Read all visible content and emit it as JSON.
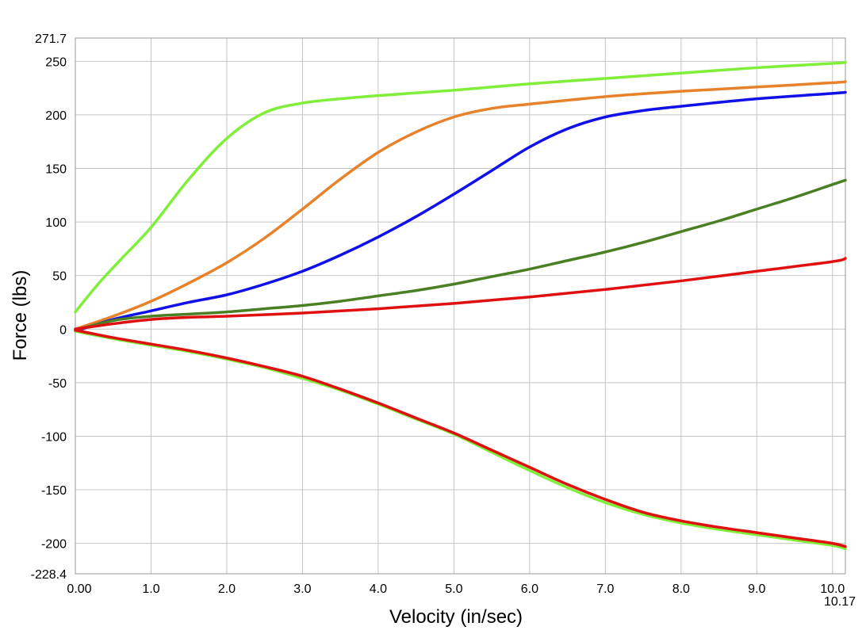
{
  "chart_data": {
    "type": "line",
    "xlabel": "Velocity (in/sec)",
    "ylabel": "Force (lbs)",
    "xlim": [
      0,
      10.17
    ],
    "ylim": [
      -228.4,
      271.7
    ],
    "x_ticks": [
      "0.00",
      "1.0",
      "2.0",
      "3.0",
      "4.0",
      "5.0",
      "6.0",
      "7.0",
      "8.0",
      "9.0",
      "10.0",
      "10.17"
    ],
    "y_ticks": [
      "271.7",
      "250",
      "200",
      "150",
      "100",
      "50",
      "0",
      "-50",
      "-100",
      "-150",
      "-200",
      "-228.4"
    ],
    "grid": true,
    "series": [
      {
        "color": "#7fef3a",
        "x": [
          0.0,
          0.3,
          0.6,
          1.0,
          1.5,
          2.0,
          2.5,
          3.0,
          3.5,
          4.0,
          5.0,
          6.0,
          7.0,
          8.0,
          9.0,
          10.0,
          10.17
        ],
        "y": [
          16,
          42,
          65,
          95,
          140,
          178,
          202,
          211,
          215,
          218,
          223,
          229,
          234,
          239,
          244,
          248,
          249
        ]
      },
      {
        "color": "#e8822a",
        "x": [
          0.0,
          0.5,
          1.0,
          1.5,
          2.0,
          2.5,
          3.0,
          3.5,
          4.0,
          4.5,
          5.0,
          5.5,
          6.0,
          7.0,
          8.0,
          9.0,
          10.0,
          10.17
        ],
        "y": [
          0,
          12,
          26,
          43,
          62,
          85,
          112,
          140,
          165,
          184,
          198,
          206,
          210,
          217,
          222,
          226,
          230,
          231
        ]
      },
      {
        "color": "#1010e8",
        "x": [
          0.0,
          0.5,
          1.0,
          1.5,
          2.0,
          2.5,
          3.0,
          3.5,
          4.0,
          4.5,
          5.0,
          5.5,
          6.0,
          6.5,
          7.0,
          7.5,
          8.0,
          9.0,
          10.0,
          10.17
        ],
        "y": [
          -2,
          9,
          17,
          25,
          32,
          42,
          54,
          69,
          86,
          105,
          126,
          148,
          170,
          187,
          198,
          204,
          208,
          215,
          220,
          221
        ]
      },
      {
        "color": "#4a7f24",
        "x": [
          0.0,
          0.5,
          1.0,
          1.5,
          2.0,
          2.5,
          3.0,
          3.5,
          4.0,
          4.5,
          5.0,
          5.5,
          6.0,
          6.5,
          7.0,
          7.5,
          8.0,
          8.5,
          9.0,
          9.5,
          10.0,
          10.17
        ],
        "y": [
          -1,
          8,
          12,
          14,
          16,
          19,
          22,
          26,
          31,
          36,
          42,
          49,
          56,
          64,
          72,
          81,
          91,
          101,
          112,
          123,
          135,
          139
        ]
      },
      {
        "color": "#e01010",
        "x": [
          0.0,
          0.5,
          1.0,
          1.5,
          2.0,
          3.0,
          4.0,
          5.0,
          6.0,
          7.0,
          8.0,
          9.0,
          10.0,
          10.17
        ],
        "y": [
          0,
          5,
          9,
          11,
          12,
          15,
          19,
          24,
          30,
          37,
          45,
          54,
          63,
          66
        ]
      },
      {
        "color": "#7fef3a",
        "x": [
          0.0,
          0.5,
          1.0,
          1.5,
          2.0,
          2.5,
          3.0,
          3.5,
          4.0,
          4.5,
          5.0,
          5.5,
          6.0,
          6.5,
          7.0,
          7.5,
          8.0,
          8.5,
          9.0,
          9.5,
          10.0,
          10.17
        ],
        "y": [
          -2,
          -9,
          -15,
          -21,
          -28,
          -36,
          -46,
          -57,
          -70,
          -84,
          -98,
          -115,
          -132,
          -148,
          -162,
          -173,
          -181,
          -187,
          -192,
          -197,
          -202,
          -205
        ]
      },
      {
        "color": "#e01010",
        "x": [
          0.0,
          0.5,
          1.0,
          1.5,
          2.0,
          2.5,
          3.0,
          3.5,
          4.0,
          4.5,
          5.0,
          5.5,
          6.0,
          6.5,
          7.0,
          7.5,
          8.0,
          8.5,
          9.0,
          9.5,
          10.0,
          10.17
        ],
        "y": [
          -1,
          -8,
          -14,
          -20,
          -27,
          -35,
          -44,
          -56,
          -69,
          -83,
          -97,
          -113,
          -129,
          -145,
          -159,
          -171,
          -179,
          -185,
          -190,
          -195,
          -200,
          -203
        ]
      }
    ]
  }
}
